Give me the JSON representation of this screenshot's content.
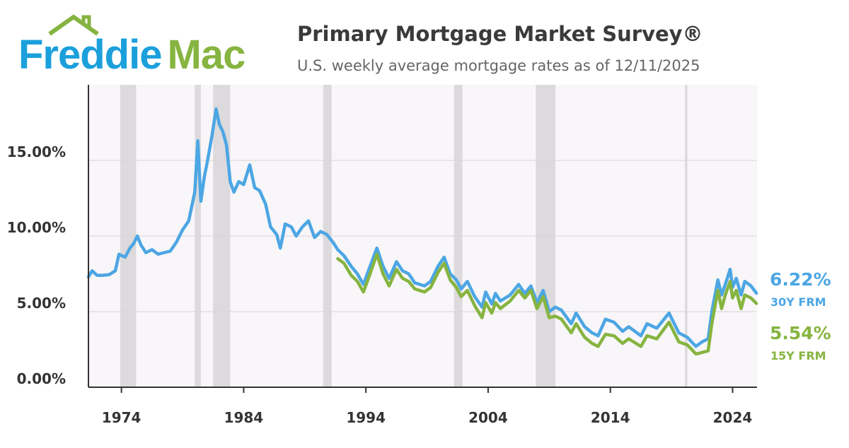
{
  "chart_data": {
    "type": "line",
    "logo": [
      "Freddie",
      "Mac"
    ],
    "title": "Primary Mortgage Market Survey®",
    "subtitle": "U.S. weekly average mortgage rates as of 12/11/2025",
    "xlim": [
      1971.3,
      2026.0
    ],
    "xticks": [
      1974,
      1984,
      1994,
      2004,
      2014,
      2024
    ],
    "ylim": [
      0,
      20
    ],
    "yticks": [
      {
        "value": 0,
        "label": "0.00%"
      },
      {
        "value": 5,
        "label": "5.00%"
      },
      {
        "value": 10,
        "label": "10.00%"
      },
      {
        "value": 15,
        "label": "15.00%"
      }
    ],
    "grid": true,
    "shaded_periods": [
      [
        1973.9,
        1975.2
      ],
      [
        1980.0,
        1980.5
      ],
      [
        1981.5,
        1982.9
      ],
      [
        1990.5,
        1991.2
      ],
      [
        2001.2,
        2001.9
      ],
      [
        2007.9,
        2009.5
      ],
      [
        2020.1,
        2020.3
      ]
    ],
    "x": [
      1971.3,
      1971.6,
      1972.0,
      1972.5,
      1973.0,
      1973.5,
      1973.8,
      1974.3,
      1974.7,
      1975.0,
      1975.3,
      1975.6,
      1976.0,
      1976.5,
      1977.0,
      1977.5,
      1978.0,
      1978.5,
      1979.0,
      1979.5,
      1980.0,
      1980.25,
      1980.5,
      1980.8,
      1981.0,
      1981.4,
      1981.75,
      1982.0,
      1982.3,
      1982.6,
      1982.9,
      1983.2,
      1983.6,
      1984.0,
      1984.5,
      1984.9,
      1985.3,
      1985.8,
      1986.2,
      1986.7,
      1987.0,
      1987.4,
      1987.9,
      1988.3,
      1988.8,
      1989.3,
      1989.8,
      1990.3,
      1990.8,
      1991.3,
      1991.7,
      1992.2,
      1992.8,
      1993.3,
      1993.8,
      1994.3,
      1994.9,
      1995.4,
      1995.9,
      1996.5,
      1997.0,
      1997.5,
      1998.0,
      1998.8,
      1999.3,
      1999.9,
      2000.4,
      2000.9,
      2001.4,
      2001.8,
      2002.3,
      2002.9,
      2003.5,
      2003.8,
      2004.3,
      2004.6,
      2005.0,
      2005.8,
      2006.5,
      2007.0,
      2007.5,
      2008.0,
      2008.5,
      2009.0,
      2009.5,
      2010.0,
      2010.8,
      2011.2,
      2011.9,
      2012.5,
      2013.0,
      2013.6,
      2014.3,
      2015.0,
      2015.5,
      2016.5,
      2017.0,
      2017.8,
      2018.8,
      2019.6,
      2020.3,
      2021.0,
      2021.5,
      2022.0,
      2022.3,
      2022.8,
      2023.1,
      2023.4,
      2023.8,
      2024.0,
      2024.3,
      2024.7,
      2025.0,
      2025.5,
      2025.95
    ],
    "series": [
      {
        "name": "30Y FRM",
        "color": "#4ca6e4",
        "values": [
          7.3,
          7.7,
          7.4,
          7.4,
          7.45,
          7.7,
          8.8,
          8.6,
          9.2,
          9.5,
          10.0,
          9.4,
          8.9,
          9.1,
          8.8,
          8.9,
          9.0,
          9.6,
          10.4,
          11.0,
          12.9,
          16.3,
          12.3,
          14.0,
          14.8,
          16.6,
          18.4,
          17.4,
          16.9,
          16.0,
          13.6,
          12.9,
          13.6,
          13.4,
          14.7,
          13.2,
          13.0,
          12.1,
          10.6,
          10.1,
          9.2,
          10.8,
          10.6,
          10.0,
          10.6,
          11.0,
          9.9,
          10.3,
          10.1,
          9.6,
          9.1,
          8.7,
          8.0,
          7.5,
          6.8,
          7.9,
          9.2,
          8.0,
          7.2,
          8.3,
          7.7,
          7.5,
          6.9,
          6.7,
          7.0,
          8.0,
          8.6,
          7.5,
          7.1,
          6.5,
          7.0,
          6.0,
          5.3,
          6.3,
          5.5,
          6.2,
          5.7,
          6.1,
          6.8,
          6.2,
          6.7,
          5.6,
          6.4,
          5.0,
          5.3,
          5.1,
          4.2,
          4.9,
          4.0,
          3.6,
          3.4,
          4.5,
          4.3,
          3.7,
          4.0,
          3.4,
          4.2,
          3.9,
          4.9,
          3.6,
          3.3,
          2.7,
          3.0,
          3.2,
          5.0,
          7.1,
          6.1,
          6.8,
          7.8,
          6.6,
          7.2,
          6.1,
          7.0,
          6.7,
          6.22
        ],
        "value_labels": [
          null,
          null,
          null,
          null,
          null,
          null,
          null,
          null,
          null,
          null,
          null,
          null,
          null,
          null,
          null,
          null,
          null,
          null,
          null,
          null,
          null,
          null,
          null,
          null,
          null,
          null,
          null,
          null,
          null,
          null,
          null,
          null,
          null,
          null,
          null,
          null,
          null,
          null,
          null,
          null,
          null,
          null,
          null,
          null,
          null,
          null,
          null,
          null,
          null,
          null,
          null,
          null,
          null,
          null,
          null,
          null,
          null,
          null,
          null,
          null,
          null,
          null,
          null,
          null,
          null,
          null,
          null,
          null,
          null,
          null,
          null,
          null,
          null,
          null,
          null,
          null,
          null,
          null,
          null,
          null,
          null,
          null,
          null,
          null,
          null,
          null,
          null,
          null,
          null,
          null,
          null,
          null,
          null,
          null,
          null,
          null,
          null,
          null,
          null,
          null,
          null,
          null,
          null,
          null,
          null,
          null,
          null,
          null,
          null,
          null,
          null,
          null,
          null,
          null,
          "6.22%"
        ]
      },
      {
        "name": "15Y FRM",
        "color": "#86b440",
        "values": [
          null,
          null,
          null,
          null,
          null,
          null,
          null,
          null,
          null,
          null,
          null,
          null,
          null,
          null,
          null,
          null,
          null,
          null,
          null,
          null,
          null,
          null,
          null,
          null,
          null,
          null,
          null,
          null,
          null,
          null,
          null,
          null,
          null,
          null,
          null,
          null,
          null,
          null,
          null,
          null,
          null,
          null,
          null,
          null,
          null,
          null,
          null,
          null,
          null,
          null,
          8.5,
          8.2,
          7.4,
          7.0,
          6.3,
          7.4,
          8.8,
          7.5,
          6.7,
          7.8,
          7.2,
          7.0,
          6.5,
          6.3,
          6.6,
          7.6,
          8.2,
          7.1,
          6.6,
          6.0,
          6.4,
          5.4,
          4.6,
          5.6,
          4.9,
          5.6,
          5.2,
          5.7,
          6.4,
          5.9,
          6.4,
          5.2,
          6.0,
          4.6,
          4.7,
          4.5,
          3.6,
          4.2,
          3.3,
          2.9,
          2.7,
          3.5,
          3.4,
          2.9,
          3.2,
          2.7,
          3.4,
          3.2,
          4.3,
          3.0,
          2.8,
          2.2,
          2.3,
          2.4,
          4.2,
          6.4,
          5.2,
          6.1,
          7.0,
          5.9,
          6.4,
          5.2,
          6.1,
          5.9,
          5.54
        ],
        "value_labels": [
          null,
          null,
          null,
          null,
          null,
          null,
          null,
          null,
          null,
          null,
          null,
          null,
          null,
          null,
          null,
          null,
          null,
          null,
          null,
          null,
          null,
          null,
          null,
          null,
          null,
          null,
          null,
          null,
          null,
          null,
          null,
          null,
          null,
          null,
          null,
          null,
          null,
          null,
          null,
          null,
          null,
          null,
          null,
          null,
          null,
          null,
          null,
          null,
          null,
          null,
          null,
          null,
          null,
          null,
          null,
          null,
          null,
          null,
          null,
          null,
          null,
          null,
          null,
          null,
          null,
          null,
          null,
          null,
          null,
          null,
          null,
          null,
          null,
          null,
          null,
          null,
          null,
          null,
          null,
          null,
          null,
          null,
          null,
          null,
          null,
          null,
          null,
          null,
          null,
          null,
          null,
          null,
          null,
          null,
          null,
          null,
          null,
          null,
          null,
          null,
          null,
          null,
          null,
          null,
          null,
          null,
          null,
          null,
          null,
          null,
          null,
          null,
          null,
          null,
          "5.54%"
        ]
      }
    ]
  }
}
